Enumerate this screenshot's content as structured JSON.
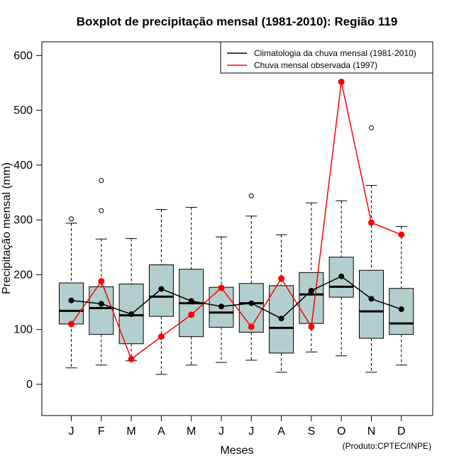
{
  "chart_data": {
    "type": "boxplot",
    "title": "Boxplot de precipitação mensal (1981-2010): Região 119",
    "xlabel": "Meses",
    "ylabel": "Precipitação mensal (mm)",
    "ylim": [
      -57,
      625
    ],
    "yticks": [
      0,
      100,
      200,
      300,
      400,
      500,
      600
    ],
    "categories": [
      "J",
      "F",
      "M",
      "A",
      "M",
      "J",
      "J",
      "A",
      "S",
      "O",
      "N",
      "D"
    ],
    "boxes": [
      {
        "whisker_low": 30,
        "q1": 110,
        "median": 134,
        "q3": 185,
        "whisker_high": 294,
        "outliers": [
          302
        ]
      },
      {
        "whisker_low": 35,
        "q1": 91,
        "median": 139,
        "q3": 178,
        "whisker_high": 265,
        "outliers": [
          317,
          372
        ]
      },
      {
        "whisker_low": 43,
        "q1": 74,
        "median": 126,
        "q3": 183,
        "whisker_high": 266,
        "outliers": []
      },
      {
        "whisker_low": 18,
        "q1": 124,
        "median": 160,
        "q3": 218,
        "whisker_high": 319,
        "outliers": []
      },
      {
        "whisker_low": 35,
        "q1": 87,
        "median": 148,
        "q3": 210,
        "whisker_high": 323,
        "outliers": []
      },
      {
        "whisker_low": 40,
        "q1": 104,
        "median": 131,
        "q3": 177,
        "whisker_high": 269,
        "outliers": []
      },
      {
        "whisker_low": 44,
        "q1": 95,
        "median": 148,
        "q3": 184,
        "whisker_high": 307,
        "outliers": [
          344
        ]
      },
      {
        "whisker_low": 22,
        "q1": 57,
        "median": 103,
        "q3": 180,
        "whisker_high": 273,
        "outliers": []
      },
      {
        "whisker_low": 59,
        "q1": 111,
        "median": 164,
        "q3": 204,
        "whisker_high": 331,
        "outliers": []
      },
      {
        "whisker_low": 52,
        "q1": 159,
        "median": 178,
        "q3": 232,
        "whisker_high": 335,
        "outliers": []
      },
      {
        "whisker_low": 22,
        "q1": 84,
        "median": 133,
        "q3": 208,
        "whisker_high": 363,
        "outliers": [
          468
        ]
      },
      {
        "whisker_low": 35,
        "q1": 91,
        "median": 111,
        "q3": 175,
        "whisker_high": 288,
        "outliers": []
      }
    ],
    "series": [
      {
        "name": "Climatologia da chuva mensal (1981-2010)",
        "color": "#000000",
        "values": [
          153,
          147,
          128,
          174,
          152,
          142,
          148,
          120,
          171,
          197,
          156,
          137
        ]
      },
      {
        "name": "Chuva mensal observada (1997)",
        "color": "#ff0000",
        "values": [
          110,
          188,
          46,
          87,
          127,
          176,
          105,
          193,
          105,
          552,
          295,
          273
        ]
      }
    ],
    "legend_position": "top-right",
    "box_fill": "#b3cece",
    "credit": "(Produto:CPTEC/INPE)"
  }
}
